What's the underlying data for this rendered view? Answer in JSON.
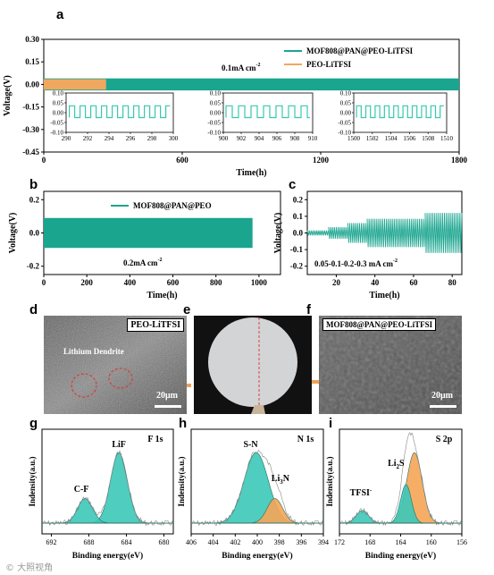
{
  "colors": {
    "teal": "#1aa58f",
    "orange": "#f0a860",
    "bright_teal": "#38c8b0",
    "peak_teal": "#3cc8b8",
    "peak_orange": "#f5a556",
    "arrow_orange": "#f0a055",
    "dendrite_circle": "#d24040"
  },
  "panel_letters": {
    "a": "a",
    "b": "b",
    "c": "c",
    "d": "d",
    "e": "e",
    "f": "f",
    "g": "g",
    "h": "h",
    "i": "i"
  },
  "chart_data": [
    {
      "id": "a",
      "type": "line",
      "xlabel": "Time(h)",
      "ylabel": "Voltage(V)",
      "xlim": [
        0,
        1800
      ],
      "ylim": [
        -0.45,
        0.3
      ],
      "xticks": [
        "0",
        "600",
        "1200",
        "1800"
      ],
      "yticks": [
        "0.30",
        "0.15",
        "0.00",
        "-0.15",
        "-0.30",
        "-0.45"
      ],
      "annotation": "0.1mA cm",
      "annotation_sup": "-2",
      "legend_position": "top-right",
      "series": [
        {
          "name": "MOF808@PAN@PEO-LiTFSI",
          "x_range": [
            0,
            1800
          ],
          "amplitude": 0.04
        },
        {
          "name": "PEO-LiTFSI",
          "x_range": [
            0,
            270
          ],
          "amplitude": 0.035
        }
      ],
      "insets": [
        {
          "xlim": [
            290,
            300
          ],
          "ylim": [
            -0.1,
            0.1
          ],
          "xticks": [
            "290",
            "292",
            "294",
            "296",
            "298",
            "300"
          ],
          "yticks": [
            "0.10",
            "0.05",
            "0.00",
            "-0.05",
            "-0.10"
          ],
          "high": 0.035,
          "low": -0.025,
          "period": 1,
          "pulses": 10
        },
        {
          "xlim": [
            900,
            910
          ],
          "ylim": [
            -0.1,
            0.1
          ],
          "xticks": [
            "900",
            "902",
            "904",
            "906",
            "908",
            "910"
          ],
          "yticks": [
            "0.10",
            "0.05",
            "0.00",
            "-0.05",
            "-0.10"
          ],
          "high": 0.035,
          "low": -0.025,
          "period": 1.4,
          "pulses": 7
        },
        {
          "xlim": [
            1500,
            1510
          ],
          "ylim": [
            -0.1,
            0.1
          ],
          "xticks": [
            "1500",
            "1502",
            "1504",
            "1506",
            "1508",
            "1510"
          ],
          "yticks": [
            "0.10",
            "0.05",
            "0.00",
            "-0.05",
            "-0.10"
          ],
          "high": 0.035,
          "low": -0.025,
          "period": 1,
          "pulses": 10
        }
      ]
    },
    {
      "id": "b",
      "type": "line",
      "xlabel": "Time(h)",
      "ylabel": "Voltage(V)",
      "xlim": [
        0,
        1100
      ],
      "ylim": [
        -0.25,
        0.25
      ],
      "xticks": [
        "0",
        "200",
        "400",
        "600",
        "800",
        "1000"
      ],
      "yticks": [
        "0.2",
        "0.0",
        "-0.2"
      ],
      "annotation": "0.2mA cm",
      "annotation_sup": "-2",
      "legend_position": "top-right",
      "series": [
        {
          "name": "MOF808@PAN@PEO",
          "x_range": [
            0,
            970
          ],
          "amplitude": 0.09
        }
      ]
    },
    {
      "id": "c",
      "type": "line",
      "xlabel": "Time(h)",
      "ylabel": "Voltage(V)",
      "xlim": [
        5,
        85
      ],
      "ylim": [
        -0.25,
        0.25
      ],
      "xticks": [
        "20",
        "40",
        "60",
        "80"
      ],
      "yticks": [
        "0.2",
        "0.1",
        "0.0",
        "-0.1",
        "-0.2"
      ],
      "annotation": "0.05-0.1-0.2-0.3 mA cm",
      "annotation_sup": "-2",
      "steps": [
        {
          "from": 5,
          "to": 16,
          "amplitude": 0.015
        },
        {
          "from": 16,
          "to": 26,
          "amplitude": 0.035
        },
        {
          "from": 26,
          "to": 36,
          "amplitude": 0.06
        },
        {
          "from": 36,
          "to": 66,
          "amplitude": 0.085
        },
        {
          "from": 66,
          "to": 85,
          "amplitude": 0.12
        }
      ]
    },
    {
      "id": "g",
      "type": "line",
      "title": "F 1s",
      "xlabel": "Binding energy(eV)",
      "ylabel": "Indensity(a.u.)",
      "xlim": [
        693,
        679
      ],
      "xticks": [
        "692",
        "688",
        "684",
        "680"
      ],
      "peaks": [
        {
          "label": "LiF",
          "center": 684.8,
          "height": 1.0,
          "width": 0.9
        },
        {
          "label": "C-F",
          "center": 688.4,
          "height": 0.35,
          "width": 0.8
        }
      ]
    },
    {
      "id": "h",
      "type": "line",
      "title": "N 1s",
      "xlabel": "Binding energy(eV)",
      "ylabel": "Indensity(a.u.)",
      "xlim": [
        406,
        394
      ],
      "xticks": [
        "406",
        "404",
        "402",
        "400",
        "398",
        "396",
        "394"
      ],
      "peaks": [
        {
          "label": "S-N",
          "center": 400.1,
          "height": 1.0,
          "width": 1.1
        },
        {
          "label": "Li3N",
          "center": 398.4,
          "height": 0.35,
          "width": 0.7
        }
      ]
    },
    {
      "id": "i",
      "type": "line",
      "title": "S 2p",
      "xlabel": "Binding energy(eV)",
      "ylabel": "Indensity(a.u.)",
      "xlim": [
        172,
        156
      ],
      "xticks": [
        "172",
        "168",
        "164",
        "160",
        "156"
      ],
      "peaks": [
        {
          "label": "Li2S",
          "center": 162.2,
          "height": 1.0,
          "width": 1.0
        },
        {
          "label": "Li2S-shoulder",
          "center": 163.3,
          "height": 0.55,
          "width": 0.7
        },
        {
          "label": "TFSI-",
          "center": 169.0,
          "height": 0.18,
          "width": 0.8
        }
      ]
    }
  ],
  "panel_d": {
    "label": "PEO-LiTFSI",
    "dendrite_label": "Lithium Dendrite",
    "scale": "20μm"
  },
  "panel_f": {
    "label": "MOF808@PAN@PEO-LiTFSI",
    "scale": "20μm"
  },
  "watermark": "© 大照视角"
}
